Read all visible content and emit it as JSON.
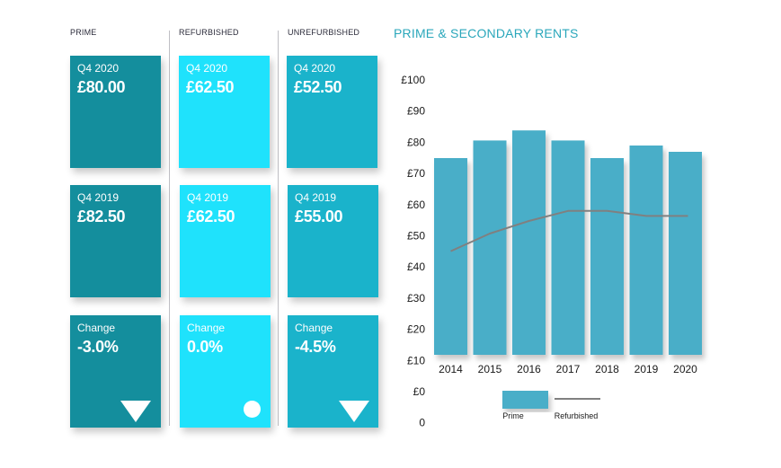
{
  "columns": {
    "prime": "PRIME",
    "refurbished": "REFURBISHED",
    "unrefurbished": "UNREFURBISHED"
  },
  "tiles": {
    "prime": {
      "q4_2020": {
        "label": "Q4 2020",
        "value": "£80.00"
      },
      "q4_2019": {
        "label": "Q4 2019",
        "value": "£82.50"
      },
      "change": {
        "label": "Change",
        "value": "-3.0%",
        "indicator": "down-triangle-icon"
      }
    },
    "refurbished": {
      "q4_2020": {
        "label": "Q4 2020",
        "value": "£62.50"
      },
      "q4_2019": {
        "label": "Q4 2019",
        "value": "£62.50"
      },
      "change": {
        "label": "Change",
        "value": "0.0%",
        "indicator": "circle-icon"
      }
    },
    "unrefurbished": {
      "q4_2020": {
        "label": "Q4 2020",
        "value": "£52.50"
      },
      "q4_2019": {
        "label": "Q4 2019",
        "value": "£55.00"
      },
      "change": {
        "label": "Change",
        "value": "-4.5%",
        "indicator": "down-triangle-icon"
      }
    }
  },
  "colors": {
    "prime_tile": "#148e9d",
    "refurbished_tile": "#1fe2fc",
    "unrefurbished_tile": "#1ab3cb",
    "bar": "#4aaec8",
    "line": "#808080",
    "title": "#2aa7bb"
  },
  "chart_data": {
    "type": "bar",
    "title": "PRIME & SECONDARY RENTS",
    "categories": [
      "2014",
      "2015",
      "2016",
      "2017",
      "2018",
      "2019",
      "2020"
    ],
    "series": [
      {
        "name": "Prime",
        "type": "bar",
        "values": [
          80,
          87,
          91,
          87,
          80,
          85,
          82.5
        ]
      },
      {
        "name": "Refurbished",
        "type": "line",
        "values": [
          43,
          50,
          55,
          59,
          59,
          57,
          57
        ]
      }
    ],
    "y_ticks": [
      "0",
      "£0",
      "£10",
      "£20",
      "£30",
      "£40",
      "£50",
      "£60",
      "£70",
      "£80",
      "£90",
      "£100"
    ],
    "ylim": [
      0,
      100
    ],
    "legend": [
      "Prime",
      "Refurbished"
    ],
    "legend_position": "bottom",
    "grid": false
  }
}
